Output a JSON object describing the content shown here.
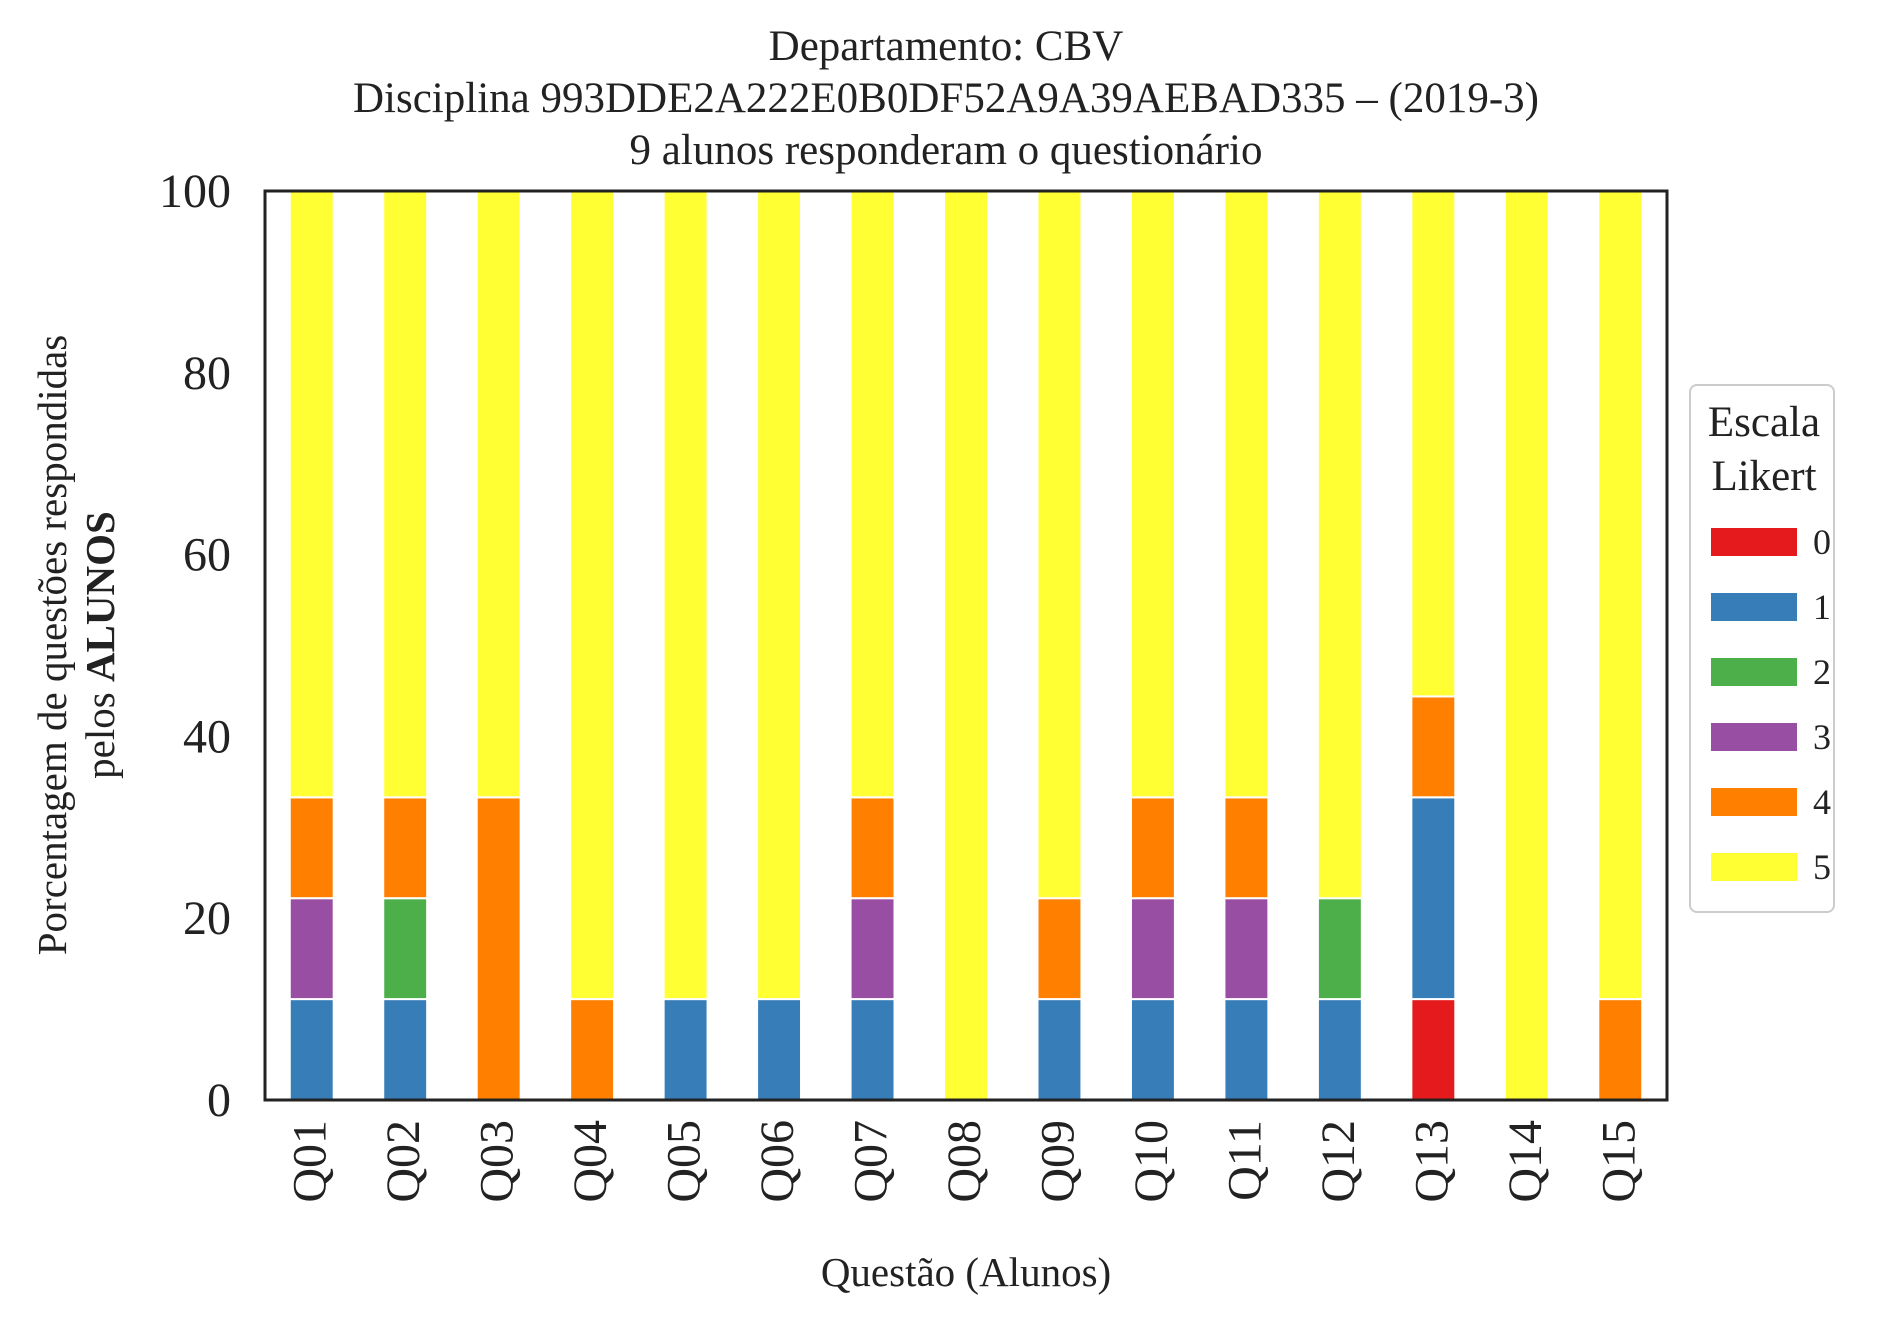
{
  "title": {
    "line1": "Departamento: CBV",
    "line2": "Disciplina 993DDE2A222E0B0DF52A9A39AEBAD335 – (2019-3)",
    "line3": "9 alunos responderam o questionário"
  },
  "axis": {
    "ylabel_line1": "Porcentagem de questões respondidas",
    "ylabel_line2_prefix": "pelos ",
    "ylabel_line2_bold": "ALUNOS",
    "xlabel": "Questão (Alunos)"
  },
  "legend": {
    "title_line1": "Escala",
    "title_line2": "Likert",
    "placement": "right",
    "items": [
      {
        "label": "0",
        "color": "#e41a1c"
      },
      {
        "label": "1",
        "color": "#377eb8"
      },
      {
        "label": "2",
        "color": "#4daf4a"
      },
      {
        "label": "3",
        "color": "#984ea3"
      },
      {
        "label": "4",
        "color": "#ff7f00"
      },
      {
        "label": "5",
        "color": "#ffff33"
      }
    ]
  },
  "chart_data": {
    "type": "bar",
    "stacked": true,
    "categories": [
      "Q01",
      "Q02",
      "Q03",
      "Q04",
      "Q05",
      "Q06",
      "Q07",
      "Q08",
      "Q09",
      "Q10",
      "Q11",
      "Q12",
      "Q13",
      "Q14",
      "Q15"
    ],
    "ylim": [
      0,
      100
    ],
    "yticks": [
      0,
      20,
      40,
      60,
      80,
      100
    ],
    "grid": false,
    "series": [
      {
        "name": "0",
        "color": "#e41a1c",
        "values": [
          0,
          0,
          0,
          0,
          0,
          0,
          0,
          0,
          0,
          0,
          0,
          0,
          11.1,
          0,
          0
        ]
      },
      {
        "name": "1",
        "color": "#377eb8",
        "values": [
          11.1,
          11.1,
          0,
          0,
          11.1,
          11.1,
          11.1,
          0,
          11.1,
          11.1,
          11.1,
          11.1,
          22.2,
          0,
          0
        ]
      },
      {
        "name": "2",
        "color": "#4daf4a",
        "values": [
          0,
          11.1,
          0,
          0,
          0,
          0,
          0,
          0,
          0,
          0,
          0,
          11.1,
          0,
          0,
          0
        ]
      },
      {
        "name": "3",
        "color": "#984ea3",
        "values": [
          11.1,
          0,
          0,
          0,
          0,
          0,
          11.1,
          0,
          0,
          11.1,
          11.1,
          0,
          0,
          0,
          0
        ]
      },
      {
        "name": "4",
        "color": "#ff7f00",
        "values": [
          11.1,
          11.1,
          33.3,
          11.1,
          0,
          0,
          11.1,
          0,
          11.1,
          11.1,
          11.1,
          0,
          11.1,
          0,
          11.1
        ]
      },
      {
        "name": "5",
        "color": "#ffff33",
        "values": [
          66.7,
          66.7,
          66.7,
          88.9,
          88.9,
          88.9,
          66.7,
          100,
          77.8,
          66.7,
          66.7,
          77.8,
          55.6,
          100,
          88.9
        ]
      }
    ]
  }
}
